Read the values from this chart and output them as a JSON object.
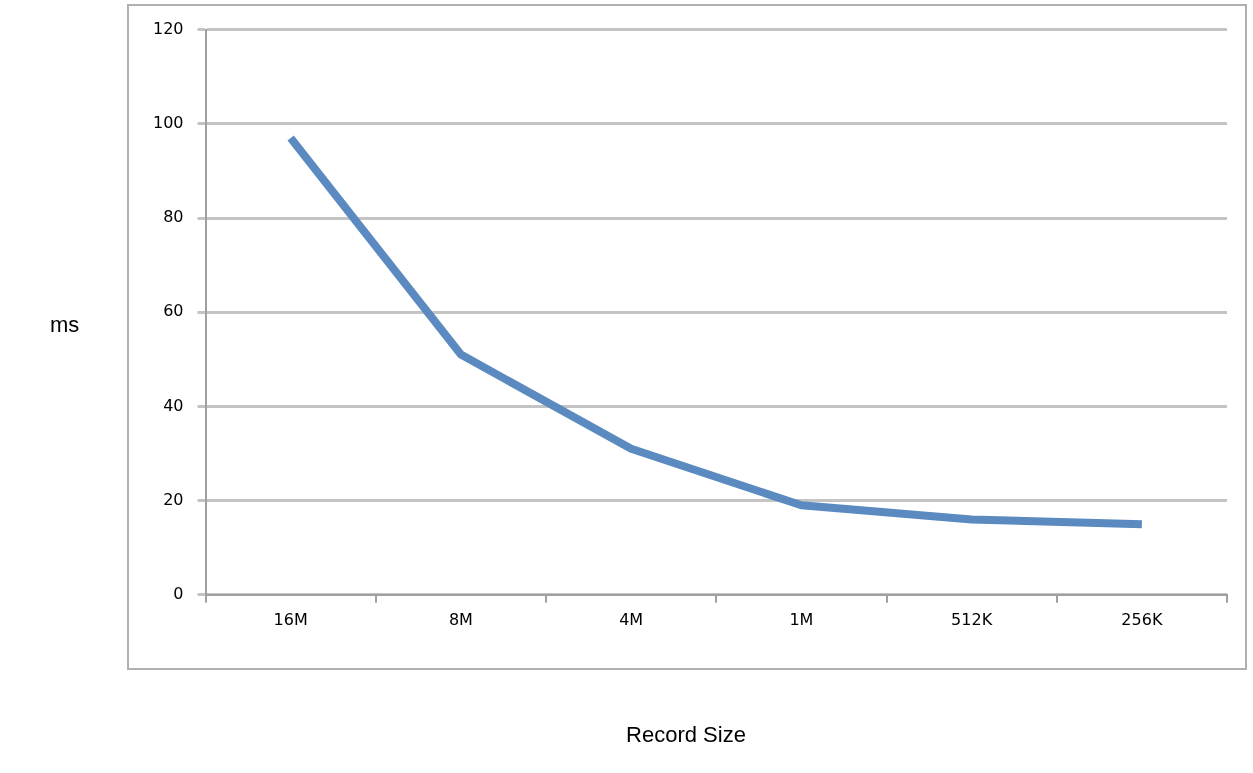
{
  "chart_data": {
    "type": "line",
    "xlabel": "Record Size",
    "ylabel": "ms",
    "categories": [
      "16M",
      "8M",
      "4M",
      "1M",
      "512K",
      "256K"
    ],
    "series": [
      {
        "color": "#5a8ac0",
        "values": [
          97,
          51,
          31,
          19,
          16,
          15
        ]
      }
    ],
    "ylim": [
      0,
      120
    ],
    "yticks": [
      0,
      20,
      40,
      60,
      80,
      100,
      120
    ],
    "grid": "y",
    "legend": false,
    "marker": "none",
    "line_style": "solid"
  }
}
